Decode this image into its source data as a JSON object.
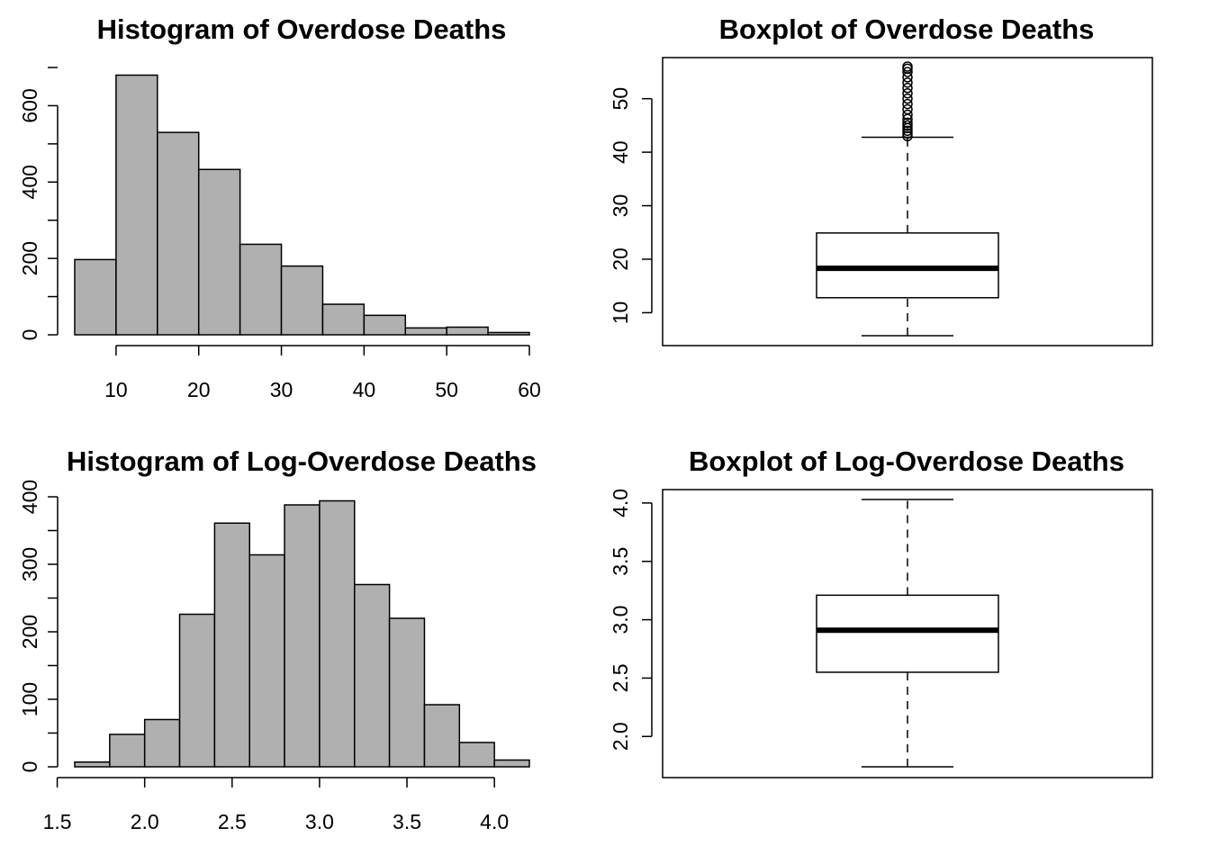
{
  "chart_data": [
    {
      "type": "bar",
      "title": "Histogram of Overdose Deaths",
      "bin_edges": [
        5,
        10,
        15,
        20,
        25,
        30,
        35,
        40,
        45,
        50,
        55,
        60
      ],
      "values": [
        197,
        680,
        530,
        433,
        237,
        180,
        80,
        51,
        18,
        20,
        6
      ],
      "xticks": [
        10,
        20,
        30,
        40,
        50,
        60
      ],
      "yticks": [
        0,
        200,
        400,
        600
      ],
      "ylim": [
        0,
        700
      ],
      "bar_color": "#b0b0b0"
    },
    {
      "type": "boxplot",
      "title": "Boxplot of Overdose Deaths",
      "whisker_low": 5.7,
      "q1": 12.8,
      "median": 18.3,
      "q3": 24.9,
      "whisker_high": 42.8,
      "outliers": [
        43.0,
        43.5,
        44.0,
        44.5,
        45.0,
        45.5,
        46.2,
        47.0,
        48.0,
        49.0,
        50.0,
        51.0,
        52.0,
        53.0,
        54.0,
        55.0,
        55.6,
        56.0
      ],
      "yticks": [
        10,
        20,
        30,
        40,
        50
      ],
      "ylim": [
        5.7,
        56.0
      ]
    },
    {
      "type": "bar",
      "title": "Histogram of Log-Overdose Deaths",
      "bin_edges": [
        1.6,
        1.8,
        2.0,
        2.2,
        2.4,
        2.6,
        2.8,
        3.0,
        3.2,
        3.4,
        3.6,
        3.8,
        4.0,
        4.2
      ],
      "values": [
        7,
        48,
        70,
        226,
        361,
        314,
        388,
        394,
        270,
        220,
        92,
        36,
        10
      ],
      "xticks": [
        1.5,
        2.0,
        2.5,
        3.0,
        3.5,
        4.0
      ],
      "yticks": [
        0,
        100,
        200,
        300,
        400
      ],
      "ylim": [
        0,
        400
      ],
      "bar_color": "#b0b0b0"
    },
    {
      "type": "boxplot",
      "title": "Boxplot of Log-Overdose Deaths",
      "whisker_low": 1.74,
      "q1": 2.55,
      "median": 2.91,
      "q3": 3.21,
      "whisker_high": 4.03,
      "outliers": [],
      "yticks": [
        2.0,
        2.5,
        3.0,
        3.5,
        4.0
      ],
      "ylim": [
        1.74,
        4.03
      ]
    }
  ]
}
